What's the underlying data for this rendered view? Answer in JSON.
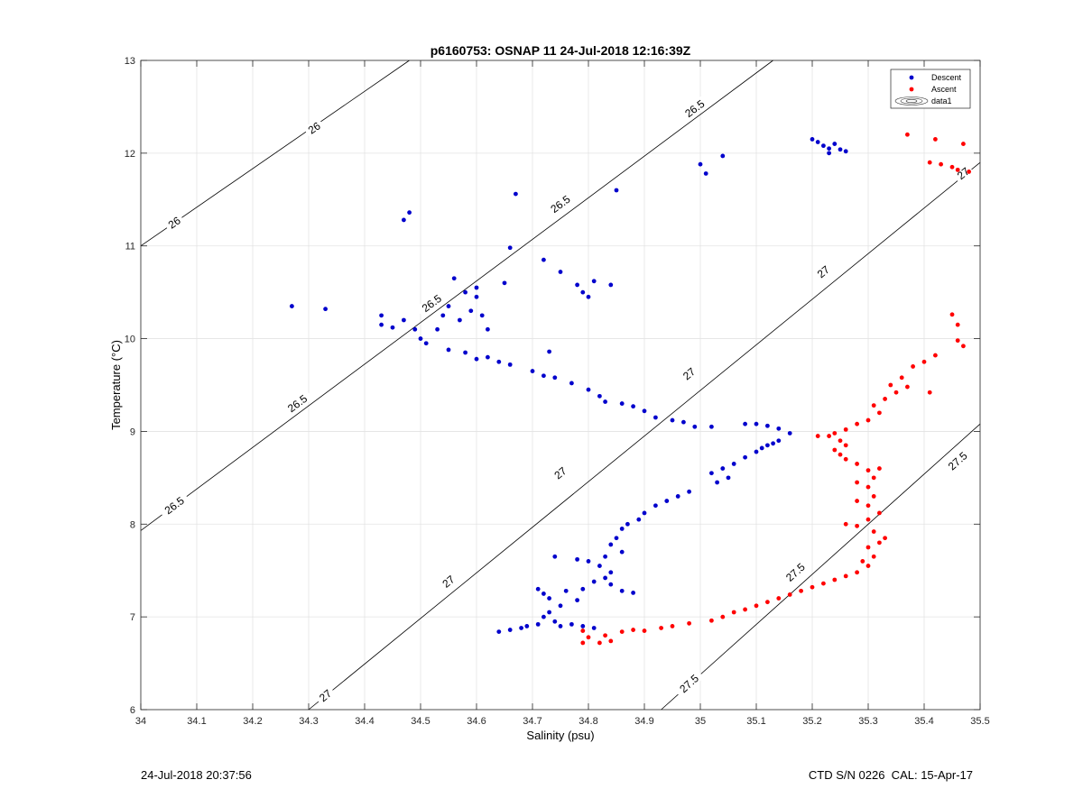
{
  "chart_data": {
    "type": "scatter",
    "title": "p6160753: OSNAP 11 24-Jul-2018 12:16:39Z",
    "xlabel": "Salinity (psu)",
    "ylabel": "Temperature (°C)",
    "xlim": [
      34,
      35.5
    ],
    "ylim": [
      6,
      13
    ],
    "xticks": [
      "34",
      "34.1",
      "34.2",
      "34.3",
      "34.4",
      "34.5",
      "34.6",
      "34.7",
      "34.8",
      "34.9",
      "35",
      "35.1",
      "35.2",
      "35.3",
      "35.4",
      "35.5"
    ],
    "yticks": [
      "6",
      "7",
      "8",
      "9",
      "10",
      "11",
      "12",
      "13"
    ],
    "grid": true,
    "legend_position": "top-right",
    "legend": [
      "Descent",
      "Ascent",
      "data1"
    ],
    "density_contours": {
      "name": "data1",
      "levels": [
        {
          "label": "26",
          "points": [
            [
              34.0,
              11.0
            ],
            [
              34.48,
              13.0
            ]
          ],
          "label_positions": [
            [
              34.06,
              11.25
            ],
            [
              34.31,
              12.27
            ]
          ]
        },
        {
          "label": "26.5",
          "points": [
            [
              34.0,
              7.93
            ],
            [
              35.13,
              13.0
            ]
          ],
          "label_positions": [
            [
              34.06,
              8.2
            ],
            [
              34.28,
              9.3
            ],
            [
              34.52,
              10.38
            ],
            [
              34.75,
              11.45
            ],
            [
              34.99,
              12.48
            ]
          ]
        },
        {
          "label": "27",
          "points": [
            [
              34.3,
              6.0
            ],
            [
              35.5,
              11.9
            ]
          ],
          "label_positions": [
            [
              34.33,
              6.15
            ],
            [
              34.55,
              7.38
            ],
            [
              34.75,
              8.55
            ],
            [
              34.98,
              9.62
            ],
            [
              35.22,
              10.72
            ],
            [
              35.47,
              11.78
            ]
          ]
        },
        {
          "label": "27.5",
          "points": [
            [
              34.93,
              6.0
            ],
            [
              35.5,
              9.08
            ]
          ],
          "label_positions": [
            [
              34.98,
              6.28
            ],
            [
              35.17,
              7.48
            ],
            [
              35.46,
              8.68
            ]
          ]
        }
      ]
    },
    "series": [
      {
        "name": "Descent",
        "color": "#0000cc",
        "points": [
          [
            34.27,
            10.35
          ],
          [
            34.33,
            10.32
          ],
          [
            34.43,
            10.25
          ],
          [
            34.43,
            10.15
          ],
          [
            34.45,
            10.12
          ],
          [
            34.47,
            11.28
          ],
          [
            34.48,
            11.36
          ],
          [
            34.47,
            10.2
          ],
          [
            34.49,
            10.1
          ],
          [
            34.5,
            10.0
          ],
          [
            34.51,
            9.95
          ],
          [
            34.53,
            10.1
          ],
          [
            34.54,
            10.25
          ],
          [
            34.55,
            10.35
          ],
          [
            34.56,
            10.65
          ],
          [
            34.57,
            10.2
          ],
          [
            34.58,
            10.5
          ],
          [
            34.59,
            10.3
          ],
          [
            34.6,
            10.45
          ],
          [
            34.61,
            10.25
          ],
          [
            34.6,
            10.55
          ],
          [
            34.62,
            10.1
          ],
          [
            34.55,
            9.88
          ],
          [
            34.58,
            9.85
          ],
          [
            34.6,
            9.78
          ],
          [
            34.62,
            9.8
          ],
          [
            34.64,
            9.75
          ],
          [
            34.66,
            9.72
          ],
          [
            34.65,
            10.6
          ],
          [
            34.66,
            10.98
          ],
          [
            34.67,
            11.56
          ],
          [
            34.7,
            9.65
          ],
          [
            34.72,
            9.6
          ],
          [
            34.72,
            10.85
          ],
          [
            34.74,
            9.58
          ],
          [
            34.75,
            10.72
          ],
          [
            34.73,
            9.86
          ],
          [
            34.77,
            9.52
          ],
          [
            34.78,
            10.58
          ],
          [
            34.79,
            10.5
          ],
          [
            34.8,
            10.45
          ],
          [
            34.81,
            10.62
          ],
          [
            34.8,
            9.45
          ],
          [
            34.82,
            9.38
          ],
          [
            34.83,
            9.32
          ],
          [
            34.84,
            10.58
          ],
          [
            34.85,
            11.6
          ],
          [
            34.86,
            9.3
          ],
          [
            34.88,
            9.27
          ],
          [
            34.9,
            9.22
          ],
          [
            34.92,
            9.15
          ],
          [
            34.95,
            9.12
          ],
          [
            34.97,
            9.1
          ],
          [
            34.99,
            9.05
          ],
          [
            35.0,
            11.88
          ],
          [
            35.01,
            11.78
          ],
          [
            35.02,
            9.05
          ],
          [
            35.04,
            11.97
          ],
          [
            35.08,
            9.08
          ],
          [
            35.1,
            9.08
          ],
          [
            35.12,
            9.06
          ],
          [
            35.14,
            9.03
          ],
          [
            35.16,
            8.98
          ],
          [
            35.14,
            8.9
          ],
          [
            35.12,
            8.85
          ],
          [
            35.11,
            8.82
          ],
          [
            35.13,
            8.87
          ],
          [
            35.1,
            8.78
          ],
          [
            35.08,
            8.72
          ],
          [
            35.06,
            8.65
          ],
          [
            35.04,
            8.6
          ],
          [
            35.02,
            8.55
          ],
          [
            35.05,
            8.5
          ],
          [
            35.03,
            8.45
          ],
          [
            34.98,
            8.35
          ],
          [
            34.96,
            8.3
          ],
          [
            34.94,
            8.25
          ],
          [
            34.92,
            8.2
          ],
          [
            34.9,
            8.12
          ],
          [
            34.89,
            8.05
          ],
          [
            34.87,
            8.0
          ],
          [
            34.86,
            7.95
          ],
          [
            34.85,
            7.85
          ],
          [
            34.84,
            7.78
          ],
          [
            34.86,
            7.7
          ],
          [
            34.83,
            7.65
          ],
          [
            34.82,
            7.55
          ],
          [
            34.84,
            7.48
          ],
          [
            34.83,
            7.42
          ],
          [
            34.81,
            7.38
          ],
          [
            34.84,
            7.35
          ],
          [
            34.79,
            7.3
          ],
          [
            34.76,
            7.28
          ],
          [
            34.78,
            7.62
          ],
          [
            34.8,
            7.6
          ],
          [
            34.74,
            7.65
          ],
          [
            34.78,
            7.18
          ],
          [
            34.75,
            7.12
          ],
          [
            34.73,
            7.05
          ],
          [
            34.72,
            7.0
          ],
          [
            34.74,
            6.95
          ],
          [
            34.71,
            6.92
          ],
          [
            34.69,
            6.9
          ],
          [
            34.68,
            6.88
          ],
          [
            34.66,
            6.86
          ],
          [
            34.64,
            6.84
          ],
          [
            34.75,
            6.9
          ],
          [
            34.77,
            6.92
          ],
          [
            34.79,
            6.9
          ],
          [
            34.81,
            6.88
          ],
          [
            34.86,
            7.28
          ],
          [
            34.88,
            7.26
          ],
          [
            34.73,
            7.2
          ],
          [
            34.72,
            7.25
          ],
          [
            34.71,
            7.3
          ],
          [
            35.2,
            12.15
          ],
          [
            35.21,
            12.12
          ],
          [
            35.22,
            12.08
          ],
          [
            35.23,
            12.05
          ],
          [
            35.24,
            12.1
          ],
          [
            35.25,
            12.04
          ],
          [
            35.26,
            12.02
          ],
          [
            35.23,
            12.0
          ]
        ]
      },
      {
        "name": "Ascent",
        "color": "#ff0000",
        "points": [
          [
            34.79,
            6.85
          ],
          [
            34.8,
            6.78
          ],
          [
            34.82,
            6.72
          ],
          [
            34.84,
            6.74
          ],
          [
            34.79,
            6.72
          ],
          [
            34.83,
            6.8
          ],
          [
            34.86,
            6.84
          ],
          [
            34.88,
            6.86
          ],
          [
            34.9,
            6.85
          ],
          [
            34.93,
            6.88
          ],
          [
            34.95,
            6.9
          ],
          [
            34.98,
            6.93
          ],
          [
            35.02,
            6.96
          ],
          [
            35.04,
            7.0
          ],
          [
            35.06,
            7.05
          ],
          [
            35.08,
            7.08
          ],
          [
            35.1,
            7.12
          ],
          [
            35.12,
            7.16
          ],
          [
            35.14,
            7.2
          ],
          [
            35.16,
            7.24
          ],
          [
            35.18,
            7.28
          ],
          [
            35.2,
            7.32
          ],
          [
            35.22,
            7.36
          ],
          [
            35.24,
            7.4
          ],
          [
            35.26,
            7.44
          ],
          [
            35.28,
            7.48
          ],
          [
            35.3,
            7.55
          ],
          [
            35.29,
            7.6
          ],
          [
            35.31,
            7.65
          ],
          [
            35.3,
            7.75
          ],
          [
            35.32,
            7.8
          ],
          [
            35.33,
            7.85
          ],
          [
            35.31,
            7.92
          ],
          [
            35.28,
            7.98
          ],
          [
            35.26,
            8.0
          ],
          [
            35.3,
            8.05
          ],
          [
            35.32,
            8.12
          ],
          [
            35.3,
            8.2
          ],
          [
            35.28,
            8.25
          ],
          [
            35.31,
            8.3
          ],
          [
            35.3,
            8.4
          ],
          [
            35.28,
            8.45
          ],
          [
            35.31,
            8.5
          ],
          [
            35.3,
            8.58
          ],
          [
            35.32,
            8.6
          ],
          [
            35.28,
            8.65
          ],
          [
            35.26,
            8.7
          ],
          [
            35.25,
            8.75
          ],
          [
            35.24,
            8.8
          ],
          [
            35.26,
            8.85
          ],
          [
            35.25,
            8.9
          ],
          [
            35.23,
            8.95
          ],
          [
            35.21,
            8.95
          ],
          [
            35.24,
            8.98
          ],
          [
            35.26,
            9.02
          ],
          [
            35.28,
            9.08
          ],
          [
            35.3,
            9.12
          ],
          [
            35.32,
            9.2
          ],
          [
            35.31,
            9.28
          ],
          [
            35.33,
            9.35
          ],
          [
            35.35,
            9.42
          ],
          [
            35.34,
            9.5
          ],
          [
            35.37,
            9.48
          ],
          [
            35.36,
            9.58
          ],
          [
            35.38,
            9.7
          ],
          [
            35.4,
            9.75
          ],
          [
            35.42,
            9.82
          ],
          [
            35.41,
            9.42
          ],
          [
            35.46,
            9.98
          ],
          [
            35.47,
            9.92
          ],
          [
            35.46,
            10.15
          ],
          [
            35.45,
            10.26
          ],
          [
            35.37,
            12.2
          ],
          [
            35.42,
            12.15
          ],
          [
            35.47,
            12.1
          ],
          [
            35.41,
            11.9
          ],
          [
            35.43,
            11.88
          ],
          [
            35.45,
            11.85
          ],
          [
            35.46,
            11.82
          ],
          [
            35.48,
            11.8
          ]
        ]
      }
    ]
  },
  "footer": {
    "left": "24-Jul-2018 20:37:56",
    "right": "CTD S/N 0226  CAL: 15-Apr-17"
  }
}
